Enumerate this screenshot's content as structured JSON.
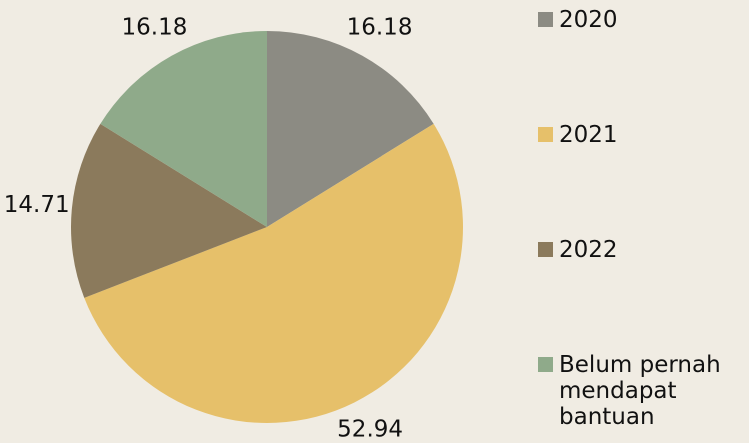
{
  "chart_data": {
    "type": "pie",
    "categories": [
      "2020",
      "2021",
      "2022",
      "Belum pernah mendapat bantuan"
    ],
    "values": [
      16.18,
      52.94,
      14.71,
      16.18
    ],
    "colors": [
      "#8c8b83",
      "#e6c06a",
      "#8b7a5c",
      "#8faa8a"
    ],
    "legend": "right"
  }
}
